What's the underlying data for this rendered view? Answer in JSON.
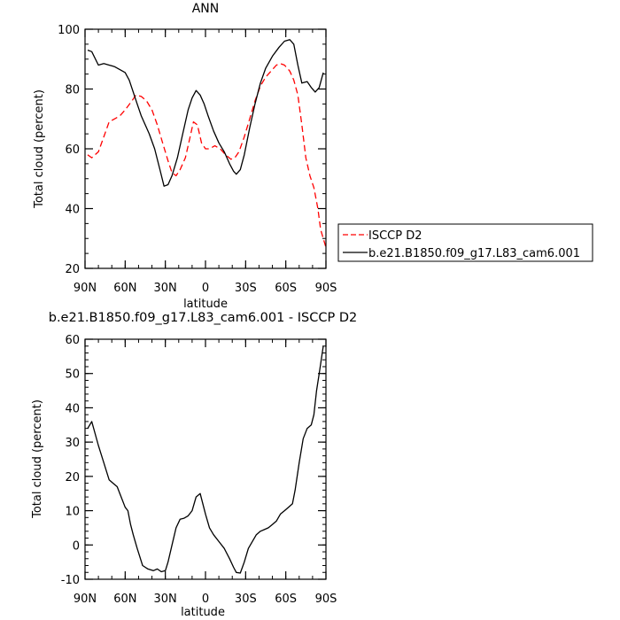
{
  "chart_data": [
    {
      "type": "line",
      "title": "ANN",
      "xlabel": "latitude",
      "ylabel": "Total cloud (percent)",
      "xlim": [
        90,
        -90
      ],
      "ylim": [
        20,
        100
      ],
      "x_ticks": [
        {
          "value": 90,
          "label": "90N"
        },
        {
          "value": 60,
          "label": "60N"
        },
        {
          "value": 30,
          "label": "30N"
        },
        {
          "value": 0,
          "label": "0"
        },
        {
          "value": -30,
          "label": "30S"
        },
        {
          "value": -60,
          "label": "60S"
        },
        {
          "value": -90,
          "label": "90S"
        }
      ],
      "y_ticks": [
        20,
        40,
        60,
        80,
        100
      ],
      "legend_position": "right",
      "series": [
        {
          "name": "ISCCP D2",
          "color": "#ff0000",
          "dash": "dashed",
          "points": [
            [
              88,
              58
            ],
            [
              85,
              57
            ],
            [
              80,
              59
            ],
            [
              76,
              64
            ],
            [
              72,
              69
            ],
            [
              68,
              70
            ],
            [
              64,
              71
            ],
            [
              60,
              73
            ],
            [
              55,
              76
            ],
            [
              52,
              78
            ],
            [
              48,
              77.5
            ],
            [
              44,
              76
            ],
            [
              40,
              73
            ],
            [
              36,
              68
            ],
            [
              32,
              62
            ],
            [
              28,
              56
            ],
            [
              25,
              52
            ],
            [
              22,
              51
            ],
            [
              19,
              53
            ],
            [
              15,
              57
            ],
            [
              12,
              63
            ],
            [
              9,
              69
            ],
            [
              6,
              68
            ],
            [
              3,
              62
            ],
            [
              0,
              60
            ],
            [
              -3,
              60
            ],
            [
              -7,
              61
            ],
            [
              -11,
              60
            ],
            [
              -15,
              58
            ],
            [
              -19,
              56.5
            ],
            [
              -22,
              57
            ],
            [
              -25,
              59
            ],
            [
              -29,
              64
            ],
            [
              -33,
              70
            ],
            [
              -37,
              76
            ],
            [
              -41,
              81
            ],
            [
              -45,
              84
            ],
            [
              -49,
              86
            ],
            [
              -53,
              88
            ],
            [
              -56,
              88.5
            ],
            [
              -59,
              88
            ],
            [
              -63,
              86
            ],
            [
              -66,
              83
            ],
            [
              -69,
              78
            ],
            [
              -72,
              68
            ],
            [
              -75,
              57
            ],
            [
              -78,
              51
            ],
            [
              -81,
              47
            ],
            [
              -84,
              40
            ],
            [
              -86,
              33
            ],
            [
              -88,
              30
            ],
            [
              -90,
              27
            ]
          ]
        },
        {
          "name": "b.e21.B1850.f09_g17.L83_cam6.001",
          "color": "#000000",
          "dash": "solid",
          "points": [
            [
              88,
              93
            ],
            [
              85,
              92.5
            ],
            [
              80,
              88
            ],
            [
              76,
              88.5
            ],
            [
              72,
              88
            ],
            [
              68,
              87.5
            ],
            [
              64,
              86.5
            ],
            [
              60,
              85.5
            ],
            [
              57,
              83
            ],
            [
              54,
              79
            ],
            [
              51,
              75
            ],
            [
              48,
              71
            ],
            [
              45,
              68
            ],
            [
              42,
              65
            ],
            [
              38,
              60
            ],
            [
              34,
              53
            ],
            [
              31,
              47.5
            ],
            [
              28,
              48
            ],
            [
              25,
              51
            ],
            [
              21,
              57
            ],
            [
              17,
              65
            ],
            [
              13,
              73
            ],
            [
              10,
              77
            ],
            [
              7,
              79.5
            ],
            [
              4,
              78
            ],
            [
              1,
              75
            ],
            [
              -2,
              71
            ],
            [
              -6,
              66
            ],
            [
              -10,
              62
            ],
            [
              -14,
              59
            ],
            [
              -18,
              55
            ],
            [
              -21,
              52.5
            ],
            [
              -23,
              51.5
            ],
            [
              -26,
              53
            ],
            [
              -29,
              58
            ],
            [
              -33,
              67
            ],
            [
              -37,
              75
            ],
            [
              -41,
              82
            ],
            [
              -45,
              87
            ],
            [
              -50,
              91
            ],
            [
              -55,
              94
            ],
            [
              -59,
              96
            ],
            [
              -63,
              96.5
            ],
            [
              -66,
              95
            ],
            [
              -69,
              88
            ],
            [
              -72,
              82
            ],
            [
              -76,
              82.5
            ],
            [
              -79,
              80.5
            ],
            [
              -82,
              79
            ],
            [
              -85,
              80.5
            ],
            [
              -88,
              85.5
            ]
          ]
        }
      ]
    },
    {
      "type": "line",
      "title": "b.e21.B1850.f09_g17.L83_cam6.001 - ISCCP D2",
      "xlabel": "latitude",
      "ylabel": "Total cloud (percent)",
      "xlim": [
        90,
        -90
      ],
      "ylim": [
        -10,
        60
      ],
      "x_ticks": [
        {
          "value": 90,
          "label": "90N"
        },
        {
          "value": 60,
          "label": "60N"
        },
        {
          "value": 30,
          "label": "30N"
        },
        {
          "value": 0,
          "label": "0"
        },
        {
          "value": -30,
          "label": "30S"
        },
        {
          "value": -60,
          "label": "60S"
        },
        {
          "value": -90,
          "label": "90S"
        }
      ],
      "y_ticks": [
        -10,
        0,
        10,
        20,
        30,
        40,
        50,
        60
      ],
      "series": [
        {
          "color": "#000000",
          "dash": "solid",
          "points": [
            [
              88,
              34
            ],
            [
              85,
              36
            ],
            [
              80,
              29
            ],
            [
              76,
              24
            ],
            [
              72,
              19
            ],
            [
              69,
              18
            ],
            [
              66,
              17
            ],
            [
              63,
              14
            ],
            [
              60,
              11
            ],
            [
              58,
              10
            ],
            [
              56,
              6
            ],
            [
              54,
              3
            ],
            [
              51,
              -1
            ],
            [
              47,
              -6
            ],
            [
              43,
              -7
            ],
            [
              39,
              -7.5
            ],
            [
              36,
              -7
            ],
            [
              33,
              -7.8
            ],
            [
              30,
              -7.5
            ],
            [
              28,
              -5
            ],
            [
              25,
              0
            ],
            [
              22,
              5
            ],
            [
              19,
              7.5
            ],
            [
              16,
              7.8
            ],
            [
              13,
              8.5
            ],
            [
              10,
              10
            ],
            [
              7,
              14
            ],
            [
              4,
              15
            ],
            [
              2,
              12
            ],
            [
              0,
              9
            ],
            [
              -3,
              5
            ],
            [
              -6,
              3
            ],
            [
              -10,
              1
            ],
            [
              -14,
              -1
            ],
            [
              -18,
              -4
            ],
            [
              -21,
              -6.5
            ],
            [
              -23,
              -8
            ],
            [
              -26,
              -8.2
            ],
            [
              -29,
              -5
            ],
            [
              -32,
              -1
            ],
            [
              -35,
              1
            ],
            [
              -38,
              3
            ],
            [
              -41,
              4
            ],
            [
              -44,
              4.5
            ],
            [
              -47,
              5
            ],
            [
              -50,
              6
            ],
            [
              -53,
              7
            ],
            [
              -56,
              9
            ],
            [
              -59,
              10
            ],
            [
              -62,
              11
            ],
            [
              -65,
              12
            ],
            [
              -67,
              16
            ],
            [
              -70,
              24
            ],
            [
              -73,
              31
            ],
            [
              -76,
              34
            ],
            [
              -79,
              35
            ],
            [
              -81,
              38
            ],
            [
              -83,
              45
            ],
            [
              -85,
              50
            ],
            [
              -88,
              58
            ]
          ]
        }
      ]
    }
  ]
}
